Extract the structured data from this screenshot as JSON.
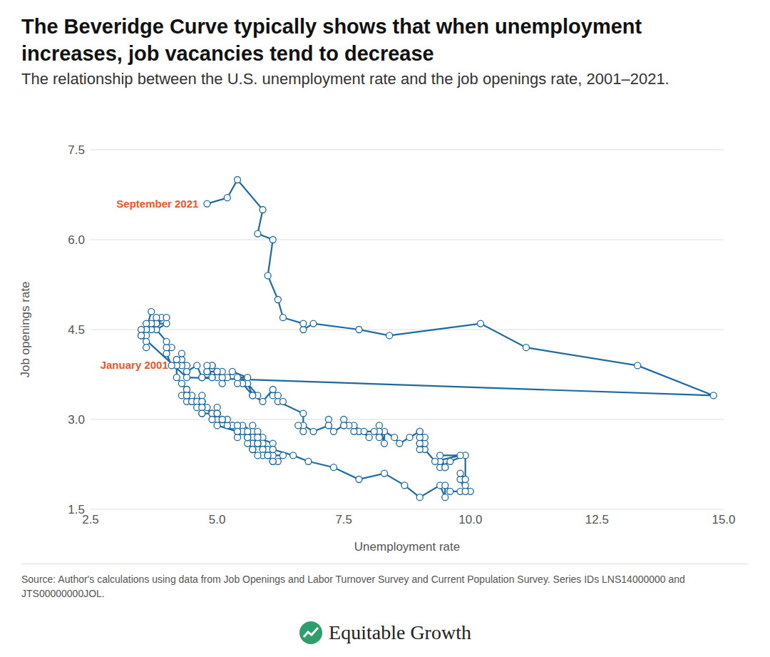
{
  "chart_data": {
    "type": "line",
    "title": "The Beveridge Curve typically shows that when unemployment increases, job vacancies tend to decrease",
    "subtitle": "The relationship between the U.S. unemployment rate and the job openings rate, 2001–2021.",
    "x_label": "Unemployment rate",
    "y_label": "Job openings rate",
    "source": "Source: Author's calculations using data from Job Openings and Labor Turnover Survey and Current Population Survey. Series IDs LNS14000000 and JTS00000000JOL.",
    "logo": "Equitable Growth",
    "color": "#1c6a9e",
    "marker": "circle",
    "grid": "y",
    "xlim": [
      2.5,
      15
    ],
    "xticks": [
      2.5,
      {
        "value": 5,
        "label": "5.0"
      },
      7.5,
      {
        "value": 10,
        "label": "10.0"
      },
      12.5,
      {
        "value": 15,
        "label": "15.0"
      }
    ],
    "ylim": [
      1.5,
      7.5
    ],
    "yticks": [
      1.5,
      {
        "value": 3,
        "label": "3.0"
      },
      4.5,
      {
        "value": 6,
        "label": "6.0"
      },
      7.5
    ],
    "annotations": [
      {
        "text": "September 2021",
        "x": 4.8,
        "y": 6.6,
        "color": "#e8572a"
      },
      {
        "text": "January 2001",
        "x": 4.2,
        "y": 3.9,
        "color": "#e8572a"
      }
    ],
    "x": [
      4.2,
      4.2,
      4.3,
      4.4,
      4.3,
      4.5,
      4.6,
      4.9,
      5.0,
      5.3,
      5.5,
      5.7,
      5.7,
      5.7,
      5.7,
      5.9,
      5.8,
      5.8,
      5.8,
      5.7,
      5.7,
      5.7,
      5.9,
      6.0,
      5.8,
      5.9,
      5.9,
      6.0,
      6.1,
      6.3,
      6.2,
      6.1,
      6.1,
      6.0,
      5.8,
      5.7,
      5.7,
      5.6,
      5.8,
      5.6,
      5.6,
      5.6,
      5.5,
      5.4,
      5.4,
      5.5,
      5.4,
      5.4,
      5.3,
      5.4,
      5.2,
      5.2,
      5.1,
      5.0,
      5.0,
      4.9,
      5.0,
      5.0,
      5.0,
      4.9,
      4.7,
      4.8,
      4.7,
      4.7,
      4.6,
      4.6,
      4.7,
      4.7,
      4.5,
      4.4,
      4.5,
      4.4,
      4.6,
      4.5,
      4.4,
      4.5,
      4.4,
      4.6,
      4.7,
      4.6,
      4.7,
      4.7,
      4.7,
      5.0,
      5.0,
      4.9,
      5.1,
      5.0,
      5.4,
      5.6,
      5.8,
      6.1,
      6.1,
      6.5,
      6.8,
      7.3,
      7.8,
      8.3,
      8.7,
      9.0,
      9.4,
      9.5,
      9.5,
      9.6,
      9.8,
      10.0,
      9.9,
      9.9,
      9.8,
      9.8,
      9.9,
      9.9,
      9.6,
      9.4,
      9.4,
      9.5,
      9.5,
      9.4,
      9.8,
      9.3,
      9.1,
      9.0,
      9.0,
      9.1,
      9.0,
      9.1,
      9.0,
      9.0,
      9.0,
      8.8,
      8.6,
      8.5,
      8.3,
      8.3,
      8.2,
      8.2,
      8.2,
      8.2,
      8.2,
      8.1,
      7.8,
      7.8,
      7.7,
      7.9,
      8.0,
      7.7,
      7.5,
      7.6,
      7.5,
      7.5,
      7.3,
      7.2,
      7.2,
      7.2,
      6.9,
      6.7,
      6.6,
      6.7,
      6.7,
      6.2,
      6.3,
      6.1,
      6.2,
      6.1,
      5.9,
      5.7,
      5.8,
      5.6,
      5.7,
      5.5,
      5.4,
      5.4,
      5.6,
      5.3,
      5.2,
      5.1,
      5.0,
      5.0,
      5.1,
      5.0,
      4.8,
      4.9,
      5.0,
      5.1,
      4.8,
      4.9,
      4.8,
      4.9,
      5.0,
      4.9,
      4.7,
      4.7,
      4.7,
      4.6,
      4.4,
      4.4,
      4.4,
      4.3,
      4.3,
      4.4,
      4.3,
      4.2,
      4.2,
      4.1,
      4.0,
      4.1,
      4.0,
      4.0,
      3.8,
      4.0,
      3.8,
      3.8,
      3.7,
      3.8,
      3.8,
      3.9,
      4.0,
      3.8,
      3.8,
      3.7,
      3.6,
      3.6,
      3.7,
      3.6,
      3.5,
      3.6,
      3.6,
      3.6,
      3.5,
      3.5,
      4.4,
      14.8,
      13.3,
      11.1,
      10.2,
      8.4,
      7.8,
      6.9,
      6.7,
      6.7,
      6.3,
      6.2,
      6.0,
      6.1,
      5.8,
      5.9,
      5.4,
      5.2,
      4.8
    ],
    "values": [
      3.9,
      3.7,
      3.6,
      3.5,
      3.4,
      3.3,
      3.3,
      3.1,
      3.0,
      2.9,
      2.9,
      2.8,
      2.9,
      2.7,
      2.7,
      2.7,
      2.8,
      2.6,
      2.6,
      2.7,
      2.6,
      2.6,
      2.6,
      2.5,
      2.6,
      2.5,
      2.4,
      2.4,
      2.4,
      2.4,
      2.3,
      2.3,
      2.3,
      2.4,
      2.4,
      2.5,
      2.5,
      2.6,
      2.6,
      2.7,
      2.7,
      2.7,
      2.8,
      2.7,
      2.8,
      2.8,
      2.8,
      2.9,
      2.9,
      2.9,
      2.9,
      3.0,
      3.0,
      3.0,
      3.1,
      3.1,
      3.1,
      3.2,
      3.1,
      3.1,
      3.3,
      3.2,
      3.3,
      3.4,
      3.3,
      3.3,
      3.2,
      3.3,
      3.3,
      3.3,
      3.3,
      3.4,
      3.3,
      3.4,
      3.5,
      3.3,
      3.4,
      3.3,
      3.3,
      3.2,
      3.2,
      3.1,
      3.1,
      3.1,
      3.1,
      3.0,
      3.0,
      2.9,
      2.8,
      2.8,
      2.7,
      2.6,
      2.5,
      2.4,
      2.3,
      2.2,
      2.0,
      2.1,
      1.9,
      1.7,
      1.9,
      1.7,
      1.9,
      1.8,
      1.8,
      1.8,
      1.9,
      1.8,
      2.0,
      2.1,
      2.0,
      2.4,
      2.3,
      2.2,
      2.3,
      2.2,
      2.2,
      2.4,
      2.4,
      2.3,
      2.5,
      2.6,
      2.5,
      2.6,
      2.8,
      2.7,
      2.6,
      2.7,
      2.8,
      2.7,
      2.6,
      2.7,
      2.8,
      2.6,
      2.9,
      2.8,
      2.8,
      2.8,
      2.7,
      2.8,
      2.8,
      2.8,
      2.8,
      2.8,
      2.7,
      2.9,
      2.9,
      2.9,
      3.0,
      2.9,
      2.8,
      2.9,
      3.0,
      2.9,
      2.8,
      2.9,
      2.9,
      2.8,
      3.1,
      3.3,
      3.3,
      3.4,
      3.4,
      3.5,
      3.3,
      3.4,
      3.4,
      3.6,
      3.4,
      3.6,
      3.6,
      3.7,
      3.7,
      3.8,
      3.7,
      3.6,
      3.8,
      3.7,
      3.7,
      3.8,
      3.8,
      3.9,
      3.8,
      3.8,
      3.8,
      3.9,
      3.9,
      3.7,
      3.8,
      3.7,
      3.7,
      3.7,
      3.7,
      3.9,
      3.8,
      3.8,
      3.9,
      3.9,
      4.0,
      3.8,
      4.1,
      3.9,
      4.0,
      3.9,
      4.1,
      4.2,
      4.2,
      4.3,
      4.5,
      4.6,
      4.6,
      4.6,
      4.5,
      4.6,
      4.6,
      4.7,
      4.7,
      4.6,
      4.7,
      4.6,
      4.6,
      4.5,
      4.8,
      4.5,
      4.4,
      4.4,
      4.3,
      4.2,
      4.5,
      4.4,
      3.7,
      3.4,
      3.9,
      4.2,
      4.6,
      4.4,
      4.5,
      4.6,
      4.5,
      4.6,
      4.7,
      5.0,
      5.4,
      6.0,
      6.1,
      6.5,
      7.0,
      6.7,
      6.6
    ]
  }
}
